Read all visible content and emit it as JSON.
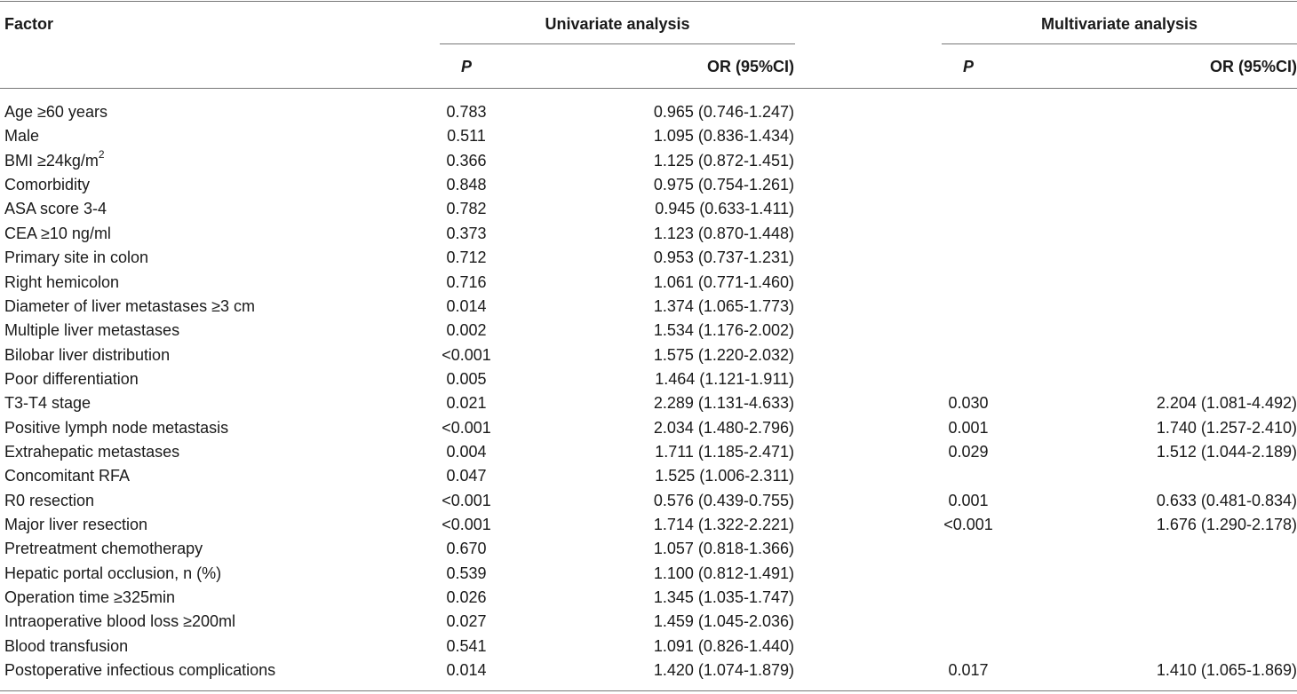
{
  "headers": {
    "factor": "Factor",
    "univariate": "Univariate analysis",
    "multivariate": "Multivariate analysis",
    "p": "P",
    "or": "OR (95%CI)"
  },
  "rows": [
    {
      "factor": "Age ≥60 years",
      "up": "0.783",
      "uor": "0.965 (0.746-1.247)",
      "mp": "",
      "mor": ""
    },
    {
      "factor": "Male",
      "up": "0.511",
      "uor": "1.095 (0.836-1.434)",
      "mp": "",
      "mor": ""
    },
    {
      "factor": "BMI ≥24kg/m",
      "sup": "2",
      "up": "0.366",
      "uor": "1.125 (0.872-1.451)",
      "mp": "",
      "mor": ""
    },
    {
      "factor": "Comorbidity",
      "up": "0.848",
      "uor": "0.975 (0.754-1.261)",
      "mp": "",
      "mor": ""
    },
    {
      "factor": "ASA score 3-4",
      "up": "0.782",
      "uor": "0.945 (0.633-1.411)",
      "mp": "",
      "mor": ""
    },
    {
      "factor": "CEA ≥10 ng/ml",
      "up": "0.373",
      "uor": "1.123 (0.870-1.448)",
      "mp": "",
      "mor": ""
    },
    {
      "factor": "Primary site in colon",
      "up": "0.712",
      "uor": "0.953 (0.737-1.231)",
      "mp": "",
      "mor": ""
    },
    {
      "factor": "Right hemicolon",
      "up": "0.716",
      "uor": "1.061 (0.771-1.460)",
      "mp": "",
      "mor": ""
    },
    {
      "factor": "Diameter of liver metastases ≥3 cm",
      "up": "0.014",
      "uor": "1.374 (1.065-1.773)",
      "mp": "",
      "mor": ""
    },
    {
      "factor": "Multiple liver metastases",
      "up": "0.002",
      "uor": "1.534 (1.176-2.002)",
      "mp": "",
      "mor": ""
    },
    {
      "factor": "Bilobar liver distribution",
      "up": "<0.001",
      "uor": "1.575 (1.220-2.032)",
      "mp": "",
      "mor": ""
    },
    {
      "factor": "Poor differentiation",
      "up": "0.005",
      "uor": "1.464 (1.121-1.911)",
      "mp": "",
      "mor": ""
    },
    {
      "factor": "T3-T4 stage",
      "up": "0.021",
      "uor": "2.289 (1.131-4.633)",
      "mp": "0.030",
      "mor": "2.204 (1.081-4.492)"
    },
    {
      "factor": "Positive lymph node metastasis",
      "up": "<0.001",
      "uor": "2.034 (1.480-2.796)",
      "mp": "0.001",
      "mor": "1.740 (1.257-2.410)"
    },
    {
      "factor": "Extrahepatic metastases",
      "up": "0.004",
      "uor": "1.711 (1.185-2.471)",
      "mp": "0.029",
      "mor": "1.512 (1.044-2.189)"
    },
    {
      "factor": "Concomitant RFA",
      "up": "0.047",
      "uor": "1.525 (1.006-2.311)",
      "mp": "",
      "mor": ""
    },
    {
      "factor": "R0 resection",
      "up": "<0.001",
      "uor": "0.576 (0.439-0.755)",
      "mp": "0.001",
      "mor": "0.633 (0.481-0.834)"
    },
    {
      "factor": "Major liver resection",
      "up": "<0.001",
      "uor": "1.714 (1.322-2.221)",
      "mp": "<0.001",
      "mor": "1.676 (1.290-2.178)"
    },
    {
      "factor": "Pretreatment chemotherapy",
      "up": "0.670",
      "uor": "1.057 (0.818-1.366)",
      "mp": "",
      "mor": ""
    },
    {
      "factor": "Hepatic portal occlusion, n (%)",
      "up": "0.539",
      "uor": "1.100 (0.812-1.491)",
      "mp": "",
      "mor": ""
    },
    {
      "factor": "Operation time ≥325min",
      "up": "0.026",
      "uor": "1.345 (1.035-1.747)",
      "mp": "",
      "mor": ""
    },
    {
      "factor": "Intraoperative blood loss ≥200ml",
      "up": "0.027",
      "uor": "1.459 (1.045-2.036)",
      "mp": "",
      "mor": ""
    },
    {
      "factor": "Blood transfusion",
      "up": "0.541",
      "uor": "1.091 (0.826-1.440)",
      "mp": "",
      "mor": ""
    },
    {
      "factor": "Postoperative infectious complications",
      "up": "0.014",
      "uor": "1.420 (1.074-1.879)",
      "mp": "0.017",
      "mor": "1.410 (1.065-1.869)"
    }
  ]
}
